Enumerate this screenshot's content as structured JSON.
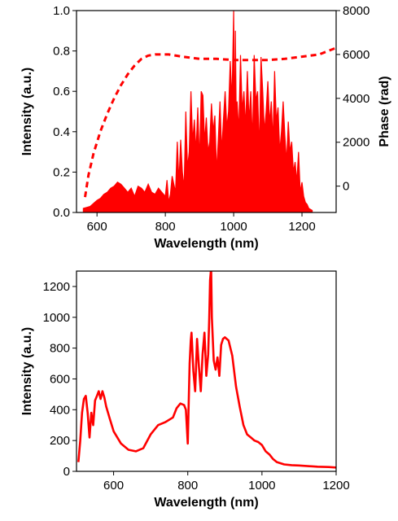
{
  "chart_data": [
    {
      "type": "line",
      "xlabel": "Wavelength (nm)",
      "ylabel": "Intensity (a.u.)",
      "y2label": "Phase (rad)",
      "xlim": [
        540,
        1300
      ],
      "ylim": [
        0,
        1.0
      ],
      "y2lim": [
        -1200,
        8000
      ],
      "xticks": [
        600,
        800,
        1000,
        1200
      ],
      "yticks": [
        "0.0",
        "0.2",
        "0.4",
        "0.6",
        "0.8",
        "1.0"
      ],
      "y2ticks": [
        "0",
        "2000",
        "4000",
        "6000",
        "8000"
      ],
      "grid": false,
      "series": [
        {
          "axis": "left",
          "style": "solid-filled",
          "color": "#ff0000",
          "x": [
            560,
            580,
            600,
            610,
            620,
            630,
            640,
            650,
            660,
            670,
            680,
            690,
            700,
            710,
            720,
            730,
            740,
            750,
            760,
            770,
            780,
            790,
            800,
            805,
            810,
            815,
            820,
            830,
            835,
            840,
            845,
            850,
            855,
            860,
            865,
            870,
            875,
            880,
            885,
            890,
            895,
            900,
            905,
            910,
            915,
            920,
            925,
            930,
            935,
            940,
            945,
            950,
            955,
            960,
            965,
            970,
            975,
            980,
            985,
            990,
            995,
            1000,
            1003,
            1005,
            1008,
            1010,
            1015,
            1020,
            1025,
            1030,
            1035,
            1040,
            1045,
            1050,
            1055,
            1060,
            1065,
            1070,
            1075,
            1080,
            1085,
            1090,
            1095,
            1100,
            1105,
            1110,
            1115,
            1120,
            1125,
            1130,
            1135,
            1140,
            1145,
            1150,
            1155,
            1160,
            1165,
            1170,
            1175,
            1180,
            1185,
            1190,
            1195,
            1200,
            1205,
            1210,
            1215,
            1220,
            1230
          ],
          "values": [
            0.02,
            0.03,
            0.06,
            0.07,
            0.09,
            0.1,
            0.12,
            0.13,
            0.15,
            0.14,
            0.12,
            0.1,
            0.12,
            0.08,
            0.13,
            0.12,
            0.1,
            0.14,
            0.1,
            0.09,
            0.12,
            0.1,
            0.08,
            0.16,
            0.05,
            0.09,
            0.18,
            0.1,
            0.35,
            0.15,
            0.36,
            0.2,
            0.12,
            0.5,
            0.22,
            0.3,
            0.6,
            0.35,
            0.46,
            0.3,
            0.52,
            0.25,
            0.6,
            0.58,
            0.35,
            0.47,
            0.3,
            0.35,
            0.54,
            0.4,
            0.48,
            0.2,
            0.36,
            0.55,
            0.3,
            0.46,
            0.6,
            0.42,
            0.5,
            0.75,
            0.55,
            1.0,
            0.3,
            0.9,
            0.4,
            0.55,
            0.4,
            0.78,
            0.5,
            0.6,
            0.42,
            0.7,
            0.45,
            0.6,
            0.35,
            0.78,
            0.55,
            0.6,
            0.3,
            0.77,
            0.6,
            0.4,
            0.5,
            0.65,
            0.44,
            0.55,
            0.35,
            0.7,
            0.45,
            0.52,
            0.3,
            0.4,
            0.55,
            0.38,
            0.25,
            0.45,
            0.3,
            0.35,
            0.2,
            0.25,
            0.15,
            0.3,
            0.1,
            0.15,
            0.08,
            0.05,
            0.04,
            0.02,
            0.01
          ]
        },
        {
          "axis": "right",
          "style": "dashed",
          "color": "#ff0000",
          "x": [
            565,
            575,
            590,
            610,
            630,
            650,
            670,
            690,
            710,
            730,
            750,
            770,
            790,
            810,
            850,
            900,
            950,
            1000,
            1050,
            1100,
            1150,
            1200,
            1250,
            1300
          ],
          "values": [
            -500,
            500,
            1500,
            2500,
            3300,
            4000,
            4600,
            5100,
            5500,
            5800,
            5950,
            6000,
            6000,
            6000,
            5900,
            5800,
            5800,
            5750,
            5750,
            5750,
            5800,
            5900,
            6000,
            6300
          ]
        }
      ]
    },
    {
      "type": "line",
      "xlabel": "Wavelength (nm)",
      "ylabel": "Intensity (a.u.)",
      "xlim": [
        500,
        1200
      ],
      "ylim": [
        0,
        1300
      ],
      "xticks": [
        600,
        800,
        1000,
        1200
      ],
      "yticks": [
        0,
        200,
        400,
        600,
        800,
        1000,
        1200
      ],
      "grid": false,
      "series": [
        {
          "axis": "left",
          "style": "solid",
          "color": "#ff0000",
          "x": [
            505,
            510,
            515,
            520,
            525,
            530,
            535,
            540,
            545,
            550,
            555,
            560,
            565,
            570,
            575,
            580,
            590,
            600,
            620,
            640,
            660,
            680,
            700,
            720,
            740,
            760,
            770,
            780,
            790,
            795,
            800,
            803,
            805,
            808,
            810,
            815,
            820,
            825,
            830,
            835,
            840,
            845,
            850,
            855,
            858,
            860,
            863,
            865,
            870,
            875,
            880,
            885,
            890,
            895,
            900,
            910,
            920,
            930,
            940,
            950,
            960,
            970,
            980,
            990,
            1000,
            1010,
            1020,
            1030,
            1040,
            1060,
            1080,
            1100,
            1120,
            1150,
            1180,
            1200
          ],
          "values": [
            60,
            200,
            380,
            470,
            490,
            380,
            220,
            380,
            300,
            460,
            490,
            520,
            470,
            520,
            480,
            420,
            340,
            260,
            180,
            140,
            130,
            150,
            240,
            300,
            320,
            350,
            410,
            440,
            430,
            400,
            180,
            500,
            700,
            850,
            900,
            650,
            520,
            860,
            680,
            520,
            760,
            900,
            620,
            760,
            1000,
            1240,
            1320,
            1000,
            720,
            660,
            740,
            620,
            820,
            860,
            870,
            850,
            750,
            550,
            420,
            300,
            240,
            220,
            200,
            190,
            170,
            130,
            110,
            80,
            60,
            45,
            40,
            38,
            35,
            30,
            28,
            25
          ]
        }
      ]
    }
  ]
}
